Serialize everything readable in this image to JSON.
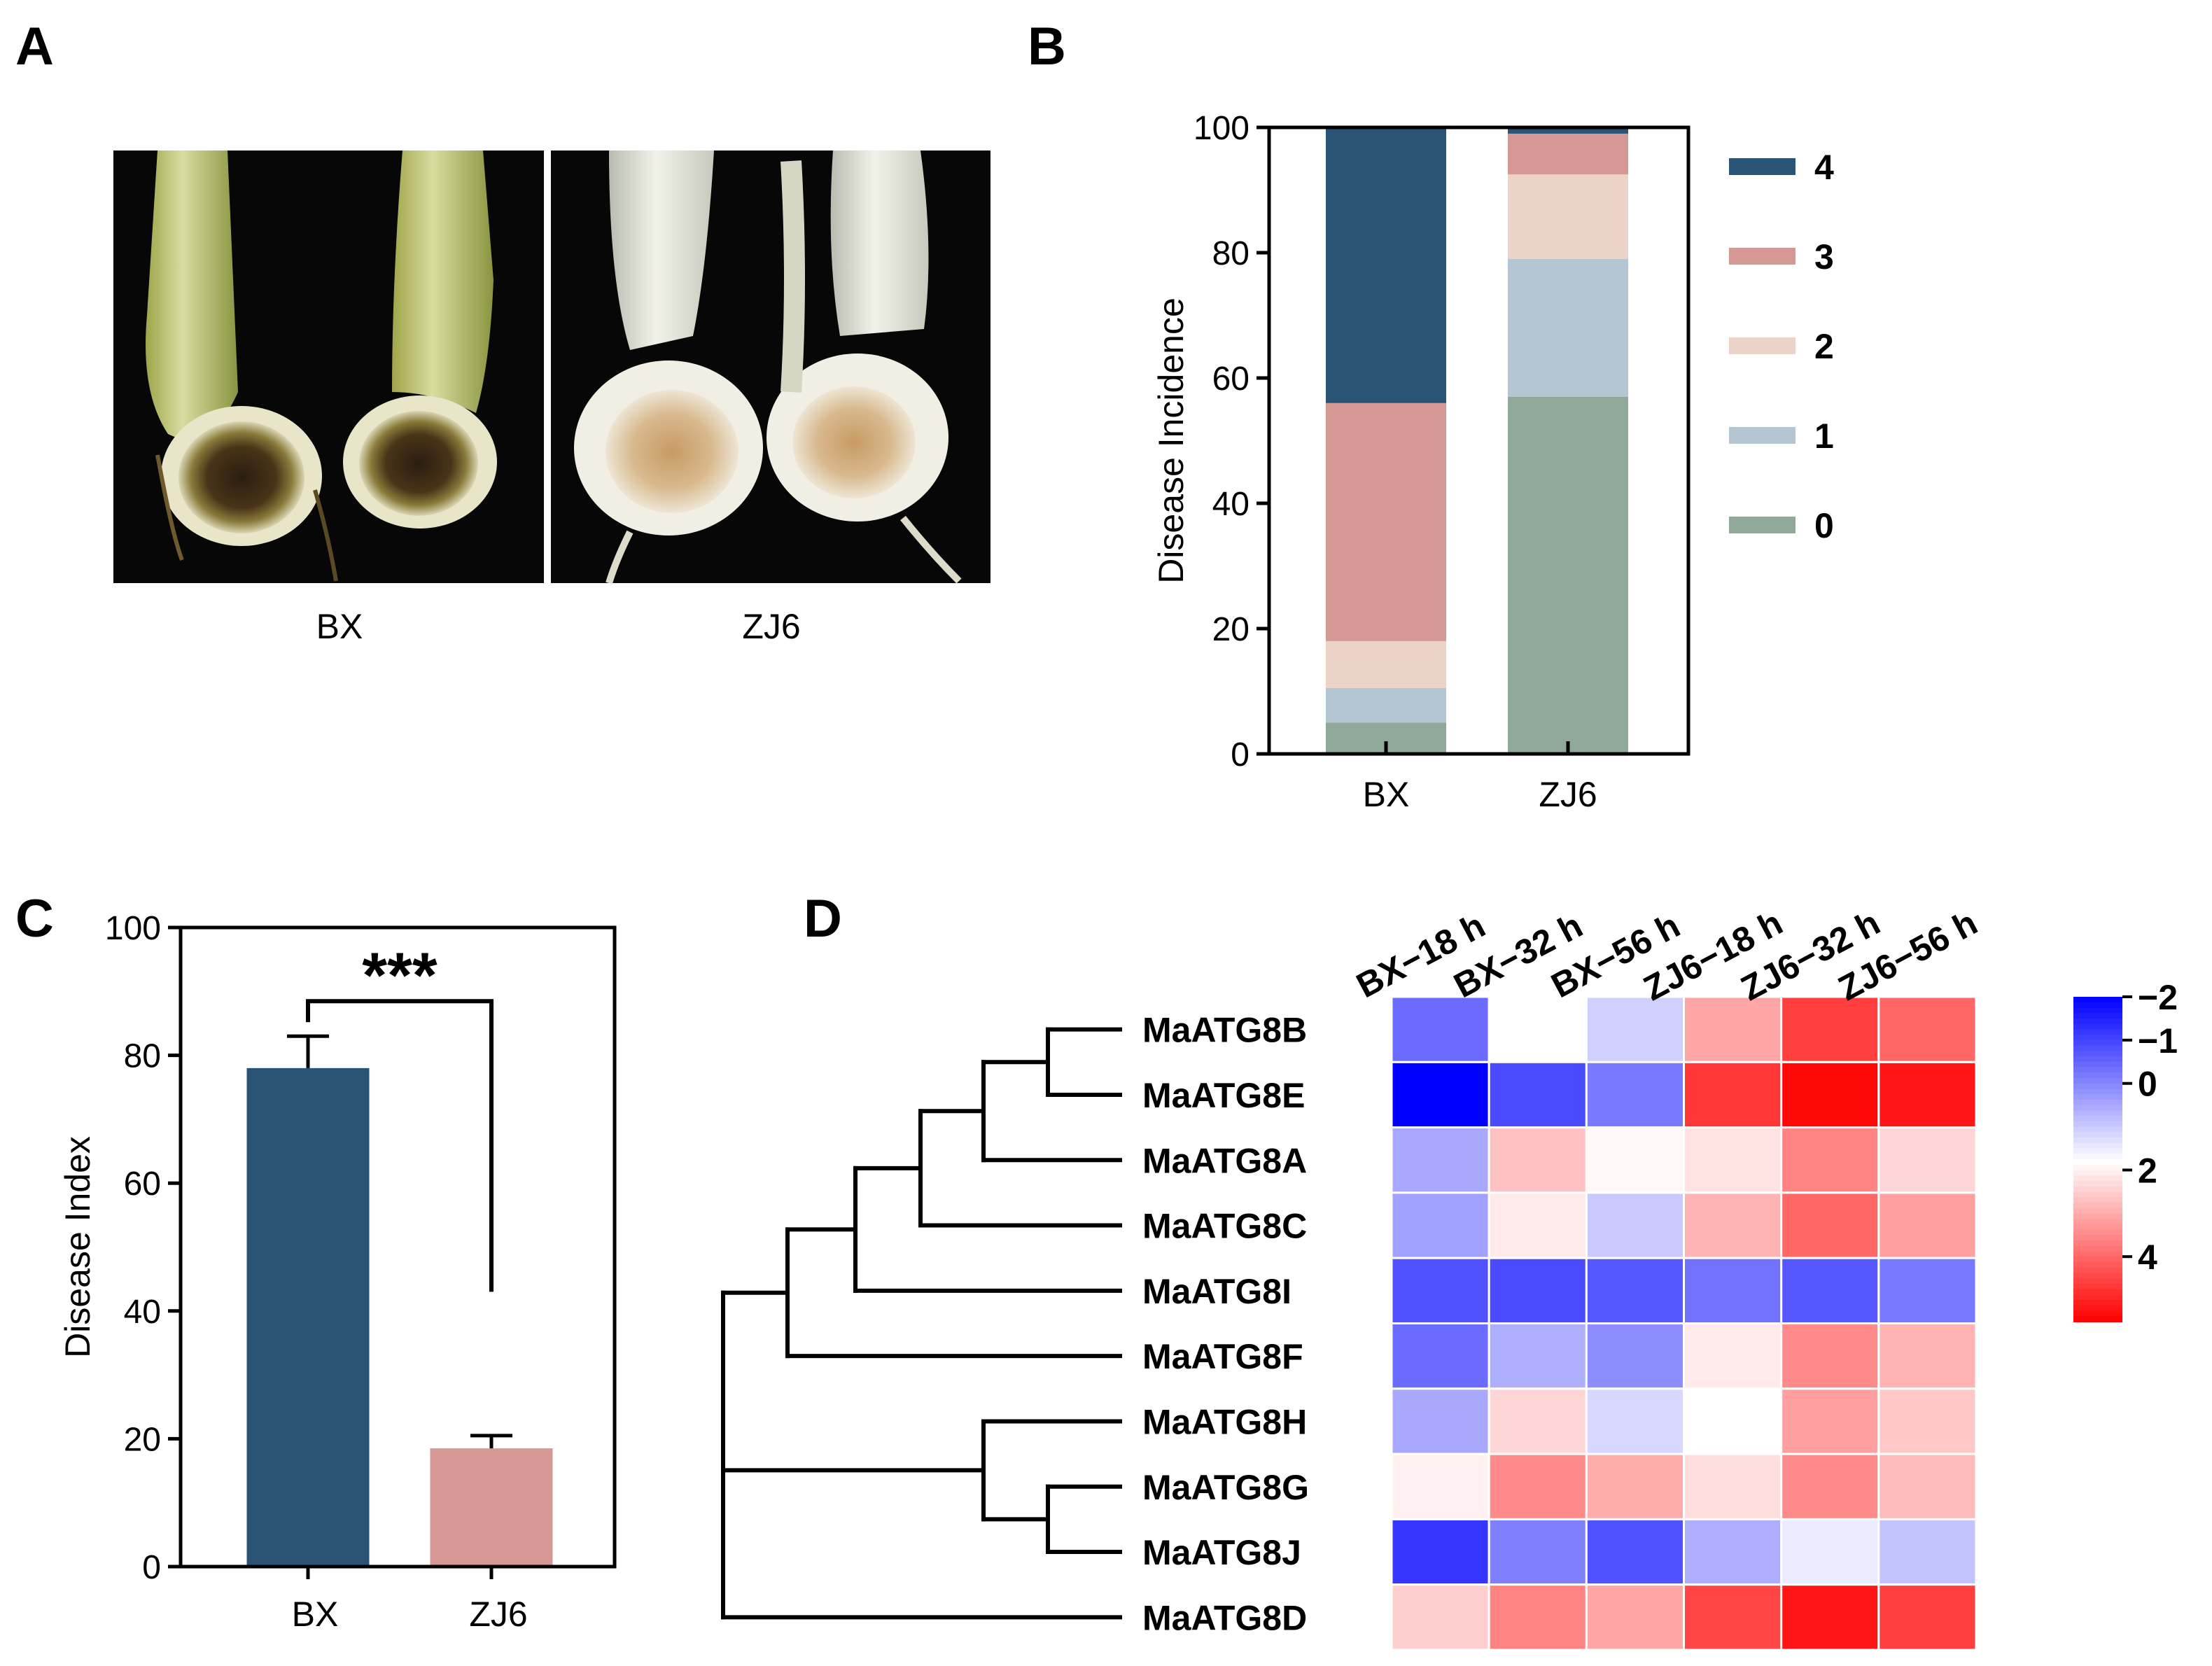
{
  "panels": {
    "a": {
      "letter": "A",
      "labels": [
        "BX",
        "ZJ6"
      ]
    },
    "b": {
      "letter": "B"
    },
    "c": {
      "letter": "C",
      "significance": "***"
    },
    "d": {
      "letter": "D"
    }
  },
  "colors": {
    "level4": "#2a5475",
    "level3": "#d59894",
    "level2": "#ecd3c8",
    "level1": "#b4c6d2",
    "level0": "#8fa897",
    "index_bx": "#2a5475",
    "index_zj6": "#d59894",
    "heat_low": "#0000ff",
    "heat_mid": "#ffffff",
    "heat_high": "#ff0000"
  },
  "chart_data": [
    {
      "id": "B",
      "type": "bar",
      "stacked": true,
      "categories": [
        "BX",
        "ZJ6"
      ],
      "ylabel": "Disease Incidence",
      "xlabel": "",
      "ylim": [
        0,
        100
      ],
      "yticks": [
        0,
        20,
        40,
        60,
        80,
        100
      ],
      "legend_placement": "right",
      "series": [
        {
          "name": "0",
          "values": [
            5,
            57
          ],
          "color_key": "level0"
        },
        {
          "name": "1",
          "values": [
            5.5,
            22
          ],
          "color_key": "level1"
        },
        {
          "name": "2",
          "values": [
            7.5,
            13.5
          ],
          "color_key": "level2"
        },
        {
          "name": "3",
          "values": [
            38,
            6.5
          ],
          "color_key": "level3"
        },
        {
          "name": "4",
          "values": [
            44,
            1
          ],
          "color_key": "level4"
        }
      ]
    },
    {
      "id": "C",
      "type": "bar",
      "categories": [
        "BX",
        "ZJ6"
      ],
      "values": [
        78,
        18.5
      ],
      "errors": [
        5,
        2
      ],
      "ylabel": "Disease Index",
      "xlabel": "",
      "ylim": [
        0,
        100
      ],
      "yticks": [
        0,
        20,
        40,
        60,
        80,
        100
      ]
    },
    {
      "id": "D",
      "type": "heatmap",
      "columns": [
        "BX−18 h",
        "BX−32 h",
        "BX−56 h",
        "ZJ6−18 h",
        "ZJ6−32 h",
        "ZJ6−56 h"
      ],
      "rows": [
        "MaATG8B",
        "MaATG8E",
        "MaATG8A",
        "MaATG8C",
        "MaATG8I",
        "MaATG8F",
        "MaATG8H",
        "MaATG8G",
        "MaATG8J",
        "MaATG8D"
      ],
      "values": [
        [
          -0.4,
          1.8,
          1.1,
          3.1,
          4.6,
          4.0
        ],
        [
          -2.0,
          -0.9,
          -0.2,
          4.7,
          5.4,
          5.2
        ],
        [
          0.5,
          2.7,
          1.9,
          2.2,
          3.6,
          2.4
        ],
        [
          0.4,
          2.1,
          1.0,
          2.9,
          4.0,
          3.2
        ],
        [
          -0.8,
          -0.9,
          -0.7,
          -0.3,
          -0.7,
          -0.2
        ],
        [
          -0.4,
          0.6,
          0.1,
          2.1,
          3.5,
          2.9
        ],
        [
          0.5,
          2.4,
          1.2,
          1.8,
          3.2,
          2.6
        ],
        [
          2.0,
          3.5,
          3.0,
          2.3,
          3.5,
          2.8
        ],
        [
          -1.2,
          -0.1,
          -0.8,
          0.6,
          1.5,
          0.9
        ],
        [
          2.5,
          3.6,
          3.1,
          4.5,
          5.2,
          4.6
        ]
      ],
      "colorbar_ticks": [
        "−2",
        "−1",
        "0",
        "2",
        "4"
      ],
      "colorbar_tick_values": [
        -2,
        -1,
        0,
        2,
        4
      ],
      "colorbar_range": [
        -2,
        5.5
      ],
      "colorbar_mid": 1.8,
      "dendrogram": "((((((MaATG8B,MaATG8E),MaATG8A),MaATG8C),MaATG8I),MaATG8F),(MaATG8H,(MaATG8G,MaATG8J))),MaATG8D"
    }
  ]
}
